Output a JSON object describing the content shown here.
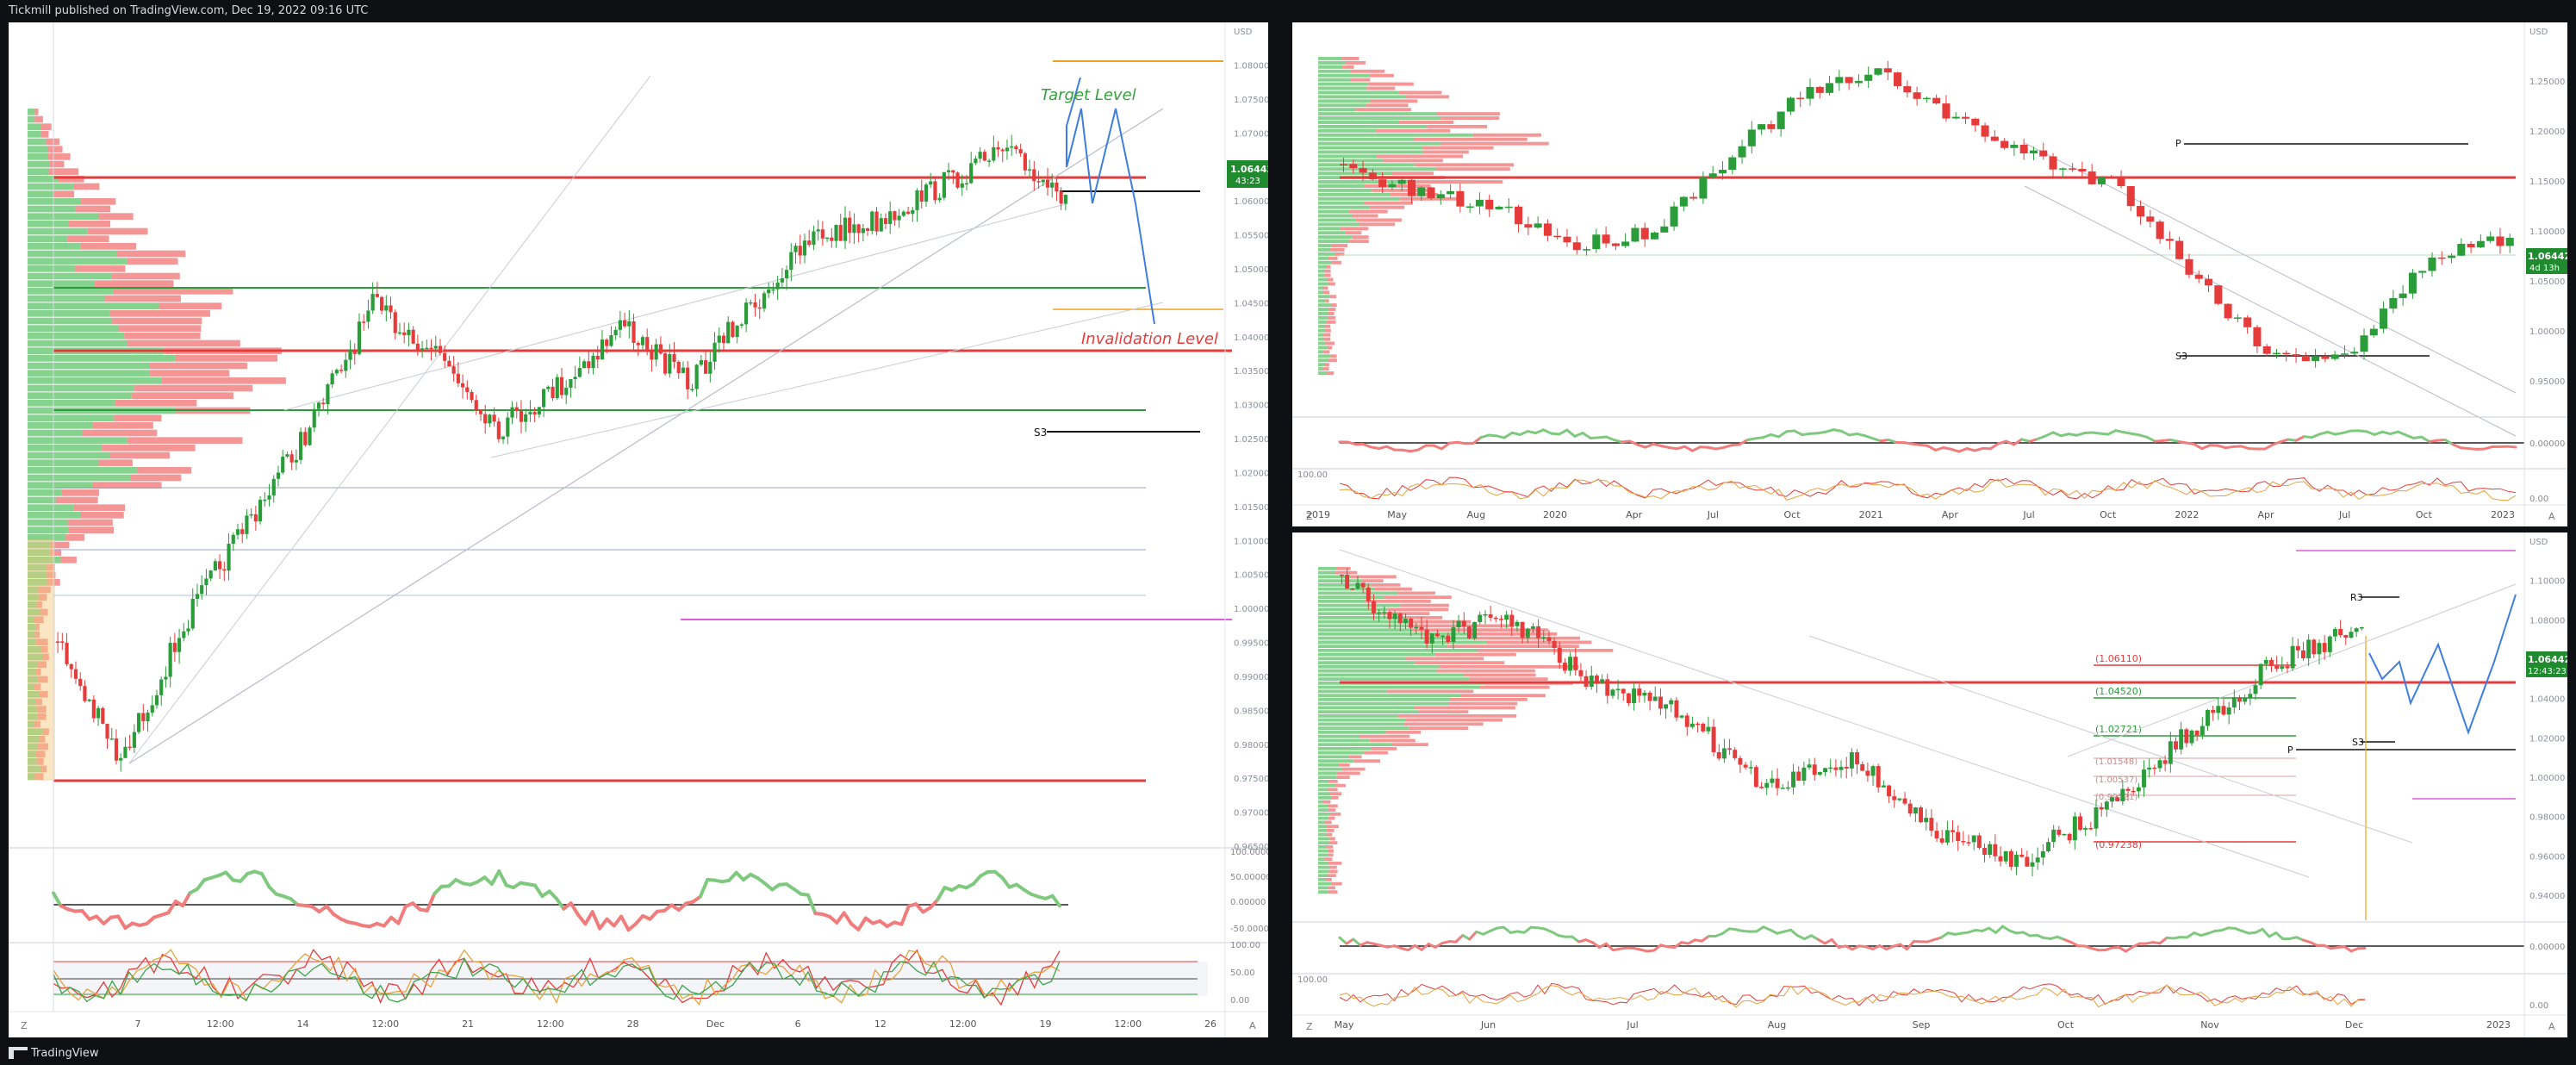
{
  "header": {
    "published_by": "Tickmill published on TradingView.com, Dec 19, 2022 09:16 UTC"
  },
  "footer": {
    "brand": "TradingView"
  },
  "colors": {
    "bull": "#2a9d3a",
    "bear": "#e63b3b",
    "projection": "#3e7ee0",
    "target_label": "#36a13f",
    "invalidation_label": "#e63b3b",
    "price_badge": "#1f8a2e",
    "pivot_magenta": "#e05be0",
    "pivot_orange": "#f0a020"
  },
  "left_chart": {
    "y_axis_labels": [
      "USD",
      "1.08000",
      "1.07500",
      "1.07000",
      "1.06500",
      "1.06000",
      "1.05500",
      "1.05000",
      "1.04500",
      "1.04000",
      "1.03500",
      "1.03000",
      "1.02500",
      "1.02000",
      "1.01500",
      "1.01000",
      "1.00500",
      "1.00000",
      "0.99500",
      "0.99000",
      "0.98500",
      "0.98000",
      "0.97500",
      "0.97000",
      "0.96500"
    ],
    "price_badge": "1.06443",
    "countdown": "43:23",
    "target_label": "Target Level",
    "invalidation_label": "Invalidation Level",
    "s3_label": "S3",
    "x_axis_labels": [
      "7",
      "12:00",
      "14",
      "12:00",
      "21",
      "12:00",
      "28",
      "Dec",
      "6",
      "12",
      "12:00",
      "19",
      "12:00",
      "26"
    ],
    "osc1_labels": [
      "100.00000",
      "50.00000",
      "0.00000",
      "-50.00000"
    ],
    "osc2_labels": [
      "100.00",
      "50.00",
      "0.00"
    ],
    "axis_z": "Z",
    "axis_a": "A"
  },
  "top_right_chart": {
    "y_axis_labels": [
      "USD",
      "1.25000",
      "1.20000",
      "1.15000",
      "1.10000",
      "1.05000",
      "1.00000",
      "0.95000"
    ],
    "price_badge": "1.06442",
    "countdown": "4d 13h",
    "p_label": "P",
    "s3_label": "S3",
    "x_axis_labels": [
      "2019",
      "May",
      "Aug",
      "2020",
      "Apr",
      "Jul",
      "Oct",
      "2021",
      "Apr",
      "Jul",
      "Oct",
      "2022",
      "Apr",
      "Jul",
      "Oct",
      "2023"
    ],
    "osc1_labels": [
      "0.00000"
    ],
    "osc2_labels": [
      "100.00",
      "0.00"
    ],
    "axis_z": "Z",
    "axis_a": "A"
  },
  "bottom_right_chart": {
    "y_axis_labels": [
      "USD",
      "1.10000",
      "1.08000",
      "1.06000",
      "1.04000",
      "1.02000",
      "1.00000",
      "0.98000",
      "0.96000",
      "0.94000"
    ],
    "price_badge": "1.06442",
    "countdown": "12:43:23",
    "r3_label": "R3",
    "p_label": "P",
    "s3_label": "S3",
    "fib_labels": [
      "(1.06110)",
      "(1.04520)",
      "(1.02721)",
      "(1.01548)",
      "(1.00537)",
      "(0.99521)",
      "(0.97238)"
    ],
    "x_axis_labels": [
      "May",
      "Jun",
      "Jul",
      "Aug",
      "Sep",
      "Oct",
      "Nov",
      "Dec",
      "2023"
    ],
    "osc1_labels": [
      "0.00000"
    ],
    "osc2_labels": [
      "100.00",
      "0.00"
    ],
    "axis_z": "Z",
    "axis_a": "A"
  }
}
